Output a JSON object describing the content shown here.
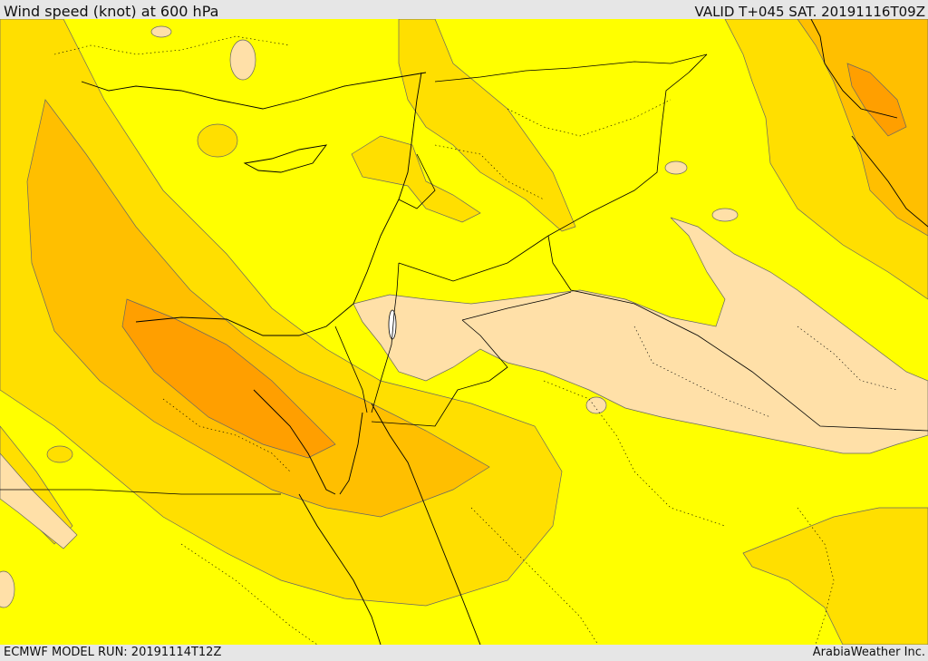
{
  "header": {
    "title": "Wind speed (knot) at 600 hPa",
    "valid_time": "VALID T+045 SAT. 20191116T09Z"
  },
  "footer": {
    "model_run": "ECMWF MODEL RUN: 20191114T12Z",
    "credit": "ArabiaWeather Inc."
  },
  "map": {
    "variable": "wind speed",
    "level": "600 hPa",
    "fill_colors": {
      "lowest": "#ffe0a8",
      "low": "#ffff00",
      "moderate": "#ffdf00",
      "high": "#ffbf00",
      "very_high": "#ff9f00",
      "maximum": "#ff7f00"
    },
    "line_colors": {
      "coastline": "#000000",
      "borders": "#000000",
      "contours": "#555555"
    }
  }
}
